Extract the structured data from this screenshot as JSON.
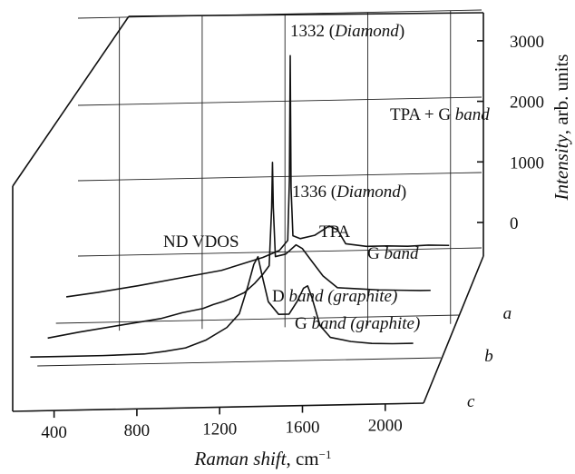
{
  "chart_data": {
    "type": "line",
    "style": "3d-waterfall",
    "xlabel_italic": "Raman shift",
    "xlabel_unit": ", cm",
    "xlabel_sup": "−1",
    "ylabel_italic": "Intensity",
    "ylabel_unit": ", arb. units",
    "xlim": [
      200,
      2150
    ],
    "ylim": [
      -250,
      3400
    ],
    "x_ticks": [
      "400",
      "800",
      "1200",
      "1600",
      "2000"
    ],
    "y_ticks": [
      "0",
      "1000",
      "2000",
      "3000"
    ],
    "grid": true,
    "series": [
      {
        "name": "a",
        "baseline": 0,
        "points": [
          [
            250,
            10
          ],
          [
            400,
            60
          ],
          [
            600,
            140
          ],
          [
            800,
            230
          ],
          [
            1000,
            320
          ],
          [
            1100,
            400
          ],
          [
            1200,
            480
          ],
          [
            1280,
            570
          ],
          [
            1320,
            700
          ],
          [
            1328,
            1500
          ],
          [
            1332,
            3150
          ],
          [
            1336,
            1400
          ],
          [
            1345,
            760
          ],
          [
            1380,
            720
          ],
          [
            1450,
            760
          ],
          [
            1520,
            880
          ],
          [
            1560,
            830
          ],
          [
            1600,
            640
          ],
          [
            1700,
            600
          ],
          [
            1800,
            600
          ],
          [
            1900,
            590
          ],
          [
            2000,
            600
          ],
          [
            2100,
            590
          ]
        ]
      },
      {
        "name": "b",
        "baseline": 0,
        "points": [
          [
            250,
            30
          ],
          [
            400,
            100
          ],
          [
            600,
            180
          ],
          [
            800,
            260
          ],
          [
            900,
            330
          ],
          [
            1000,
            380
          ],
          [
            1050,
            430
          ],
          [
            1100,
            470
          ],
          [
            1150,
            520
          ],
          [
            1200,
            580
          ],
          [
            1250,
            700
          ],
          [
            1290,
            820
          ],
          [
            1320,
            930
          ],
          [
            1332,
            1700
          ],
          [
            1336,
            2300
          ],
          [
            1340,
            1700
          ],
          [
            1350,
            1050
          ],
          [
            1400,
            1080
          ],
          [
            1450,
            1200
          ],
          [
            1480,
            1150
          ],
          [
            1520,
            1000
          ],
          [
            1580,
            780
          ],
          [
            1650,
            620
          ],
          [
            1750,
            600
          ],
          [
            1850,
            580
          ],
          [
            1950,
            570
          ],
          [
            2050,
            560
          ],
          [
            2100,
            560
          ]
        ]
      },
      {
        "name": "c",
        "baseline": 0,
        "points": [
          [
            250,
            380
          ],
          [
            400,
            380
          ],
          [
            600,
            380
          ],
          [
            800,
            390
          ],
          [
            900,
            420
          ],
          [
            1000,
            460
          ],
          [
            1100,
            560
          ],
          [
            1200,
            720
          ],
          [
            1260,
            900
          ],
          [
            1300,
            1250
          ],
          [
            1330,
            1550
          ],
          [
            1350,
            1650
          ],
          [
            1370,
            1400
          ],
          [
            1400,
            1050
          ],
          [
            1450,
            880
          ],
          [
            1500,
            880
          ],
          [
            1540,
            1050
          ],
          [
            1570,
            1220
          ],
          [
            1590,
            1250
          ],
          [
            1610,
            1100
          ],
          [
            1650,
            720
          ],
          [
            1700,
            560
          ],
          [
            1800,
            500
          ],
          [
            1900,
            470
          ],
          [
            2000,
            460
          ],
          [
            2100,
            460
          ]
        ]
      }
    ],
    "annotations": [
      {
        "series": "a",
        "x": 1332,
        "y": 3200,
        "label": "1332 (",
        "label_italic": "Diamond",
        "label_end": ")"
      },
      {
        "series": "a",
        "x": 1520,
        "y": 880,
        "label": "TPA + G ",
        "label_italic": "band",
        "label_end": ""
      },
      {
        "series": "b",
        "x": 1336,
        "y": 2300,
        "label": "1336 (",
        "label_italic": "Diamond",
        "label_end": ")"
      },
      {
        "series": "b",
        "x": 1450,
        "y": 1200,
        "label": "TPA",
        "label_italic": "",
        "label_end": ""
      },
      {
        "series": "b",
        "x": 1580,
        "y": 780,
        "label": "G ",
        "label_italic": "band",
        "label_end": ""
      },
      {
        "series": "b",
        "x": 1260,
        "y": 730,
        "label": "ND VDOS",
        "label_italic": "",
        "label_end": ""
      },
      {
        "series": "c",
        "x": 1350,
        "y": 1650,
        "label": "D ",
        "label_italic": "band",
        "label_end": " (graphite)"
      },
      {
        "series": "c",
        "x": 1590,
        "y": 1250,
        "label": "G ",
        "label_italic": "band",
        "label_end": " (graphite)"
      }
    ]
  }
}
